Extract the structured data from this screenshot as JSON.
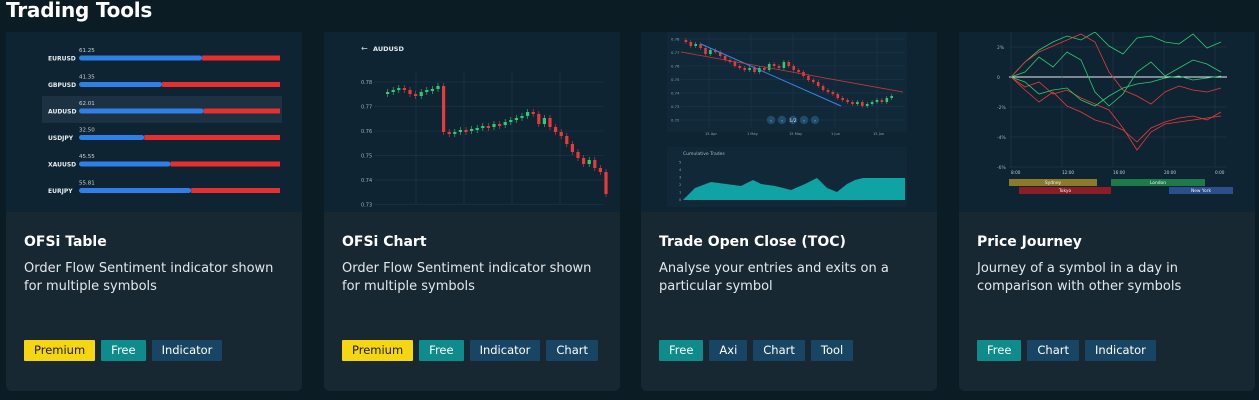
{
  "page": {
    "title": "Trading Tools"
  },
  "colors": {
    "background": "#0c1c24",
    "card": "#182832",
    "premium": "#f6d511",
    "free": "#0e8c8c",
    "tag": "#174563",
    "bull": "#2ecc71",
    "bear": "#e83a3a",
    "bar_blue": "#2f7fe8",
    "bar_red": "#e82f2f"
  },
  "cards": [
    {
      "title": "OFSi Table",
      "description": "Order Flow Sentiment indicator shown for multiple symbols",
      "tags": [
        {
          "label": "Premium",
          "kind": "premium"
        },
        {
          "label": "Free",
          "kind": "free"
        },
        {
          "label": "Indicator",
          "kind": "plain"
        }
      ],
      "preview": {
        "rows": [
          {
            "symbol": "EURUSD",
            "value": "61.25",
            "pct": 61.25
          },
          {
            "symbol": "GBPUSD",
            "value": "41.35",
            "pct": 41.35
          },
          {
            "symbol": "AUDUSD",
            "value": "62.01",
            "pct": 62.01,
            "highlighted": true
          },
          {
            "symbol": "USDJPY",
            "value": "32.50",
            "pct": 32.5
          },
          {
            "symbol": "XAUUSD",
            "value": "45.55",
            "pct": 45.55
          },
          {
            "symbol": "EURJPY",
            "value": "55.81",
            "pct": 55.81
          }
        ]
      }
    },
    {
      "title": "OFSi Chart",
      "description": "Order Flow Sentiment indicator shown for multiple symbols",
      "tags": [
        {
          "label": "Premium",
          "kind": "premium"
        },
        {
          "label": "Free",
          "kind": "free"
        },
        {
          "label": "Indicator",
          "kind": "plain"
        },
        {
          "label": "Chart",
          "kind": "plain"
        }
      ],
      "preview": {
        "back_arrow": "←",
        "symbol": "AUDUSD",
        "y_ticks": [
          "0.78",
          "0.77",
          "0.76",
          "0.75",
          "0.74",
          "0.73"
        ]
      }
    },
    {
      "title": "Trade Open Close (TOC)",
      "description": "Analyse your entries and exits on a particular symbol",
      "tags": [
        {
          "label": "Free",
          "kind": "free"
        },
        {
          "label": "Axi",
          "kind": "plain"
        },
        {
          "label": "Chart",
          "kind": "plain"
        },
        {
          "label": "Tool",
          "kind": "plain"
        }
      ],
      "preview": {
        "x_ticks": [
          "15 Apr",
          "1 May",
          "15 May",
          "1 Jun",
          "15 Jun"
        ],
        "y_ticks": [
          "0.78",
          "0.77",
          "0.76",
          "0.75",
          "0.74",
          "0.73",
          "0.72"
        ],
        "sub_title": "Cumulative Trades",
        "sub_y_ticks": [
          "5",
          "4",
          "3",
          "2",
          "1",
          "0"
        ],
        "controls": [
          "‹",
          "‹",
          "1/2",
          "›",
          "›"
        ]
      }
    },
    {
      "title": "Price Journey",
      "description": "Journey of a symbol in a day in comparison with other symbols",
      "tags": [
        {
          "label": "Free",
          "kind": "free"
        },
        {
          "label": "Chart",
          "kind": "plain"
        },
        {
          "label": "Indicator",
          "kind": "plain"
        }
      ],
      "preview": {
        "y_ticks": [
          "2%",
          "0",
          "-2%",
          "-4%",
          "-6%"
        ],
        "x_ticks": [
          "8:00",
          "12:00",
          "16:00",
          "20:00",
          "0:00"
        ],
        "sessions": [
          "Sydney",
          "London",
          "Tokyo",
          "New York"
        ]
      }
    }
  ]
}
